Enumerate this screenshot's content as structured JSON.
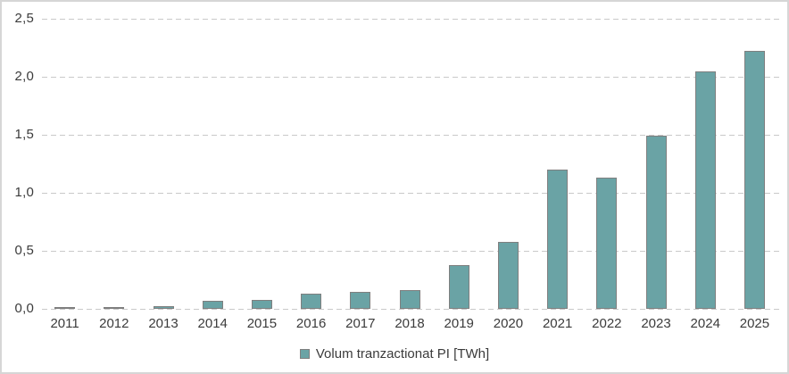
{
  "chart_data": {
    "type": "bar",
    "title": "",
    "legend": "Volum tranzactionat PI [TWh]",
    "legend_position": "bottom",
    "categories": [
      "2011",
      "2012",
      "2013",
      "2014",
      "2015",
      "2016",
      "2017",
      "2018",
      "2019",
      "2020",
      "2021",
      "2022",
      "2023",
      "2024",
      "2025"
    ],
    "series": [
      {
        "name": "Volum tranzactionat PI [TWh]",
        "values": [
          0.01,
          0.01,
          0.02,
          0.07,
          0.08,
          0.13,
          0.15,
          0.16,
          0.38,
          0.58,
          1.2,
          1.13,
          1.49,
          2.05,
          2.22
        ]
      }
    ],
    "xlabel": "",
    "ylabel": "",
    "ylim": [
      0,
      2.5
    ],
    "y_ticks": [
      {
        "label": "0,0",
        "value": 0.0
      },
      {
        "label": "0,5",
        "value": 0.5
      },
      {
        "label": "1,0",
        "value": 1.0
      },
      {
        "label": "1,5",
        "value": 1.5
      },
      {
        "label": "2,0",
        "value": 2.0
      },
      {
        "label": "2,5",
        "value": 2.5
      }
    ],
    "grid": "dashed-horizontal",
    "colors": {
      "bar_fill": "#6AA3A5",
      "bar_border": "#7F7F7F",
      "gridline": "#C9C9C9",
      "text": "#3B3B3B",
      "frame_border": "#D6D6D6",
      "background": "#FFFFFF"
    }
  }
}
